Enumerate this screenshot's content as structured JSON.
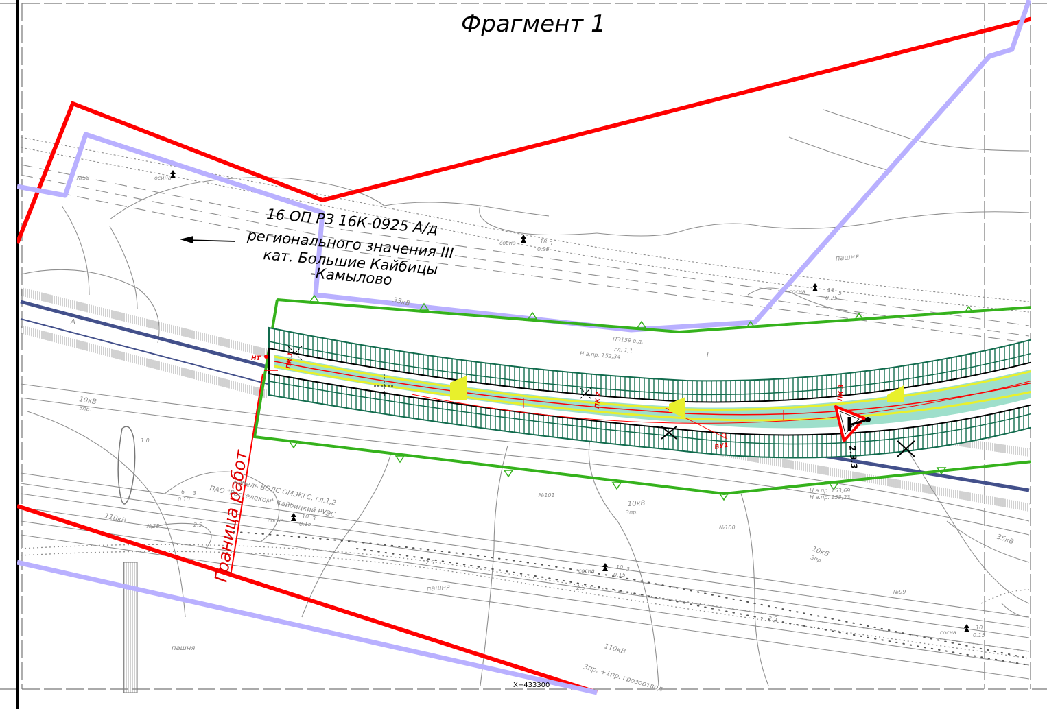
{
  "title": "Фрагмент 1",
  "road_label": {
    "line1": "16 ОП РЗ 16К-0925 А/д",
    "line2": "регионального значения III",
    "line3": "кат. Большие Кайбицы",
    "line4": "-Камылово"
  },
  "work_boundary_label": "Граница работ",
  "sign_code": "2.3.3",
  "chainage": {
    "start": "НТ",
    "pk1": "ПК 1",
    "pk2": "ПК 2",
    "pk3": "ПК 3",
    "vu": "ВУ1",
    "end": "ПК 4"
  },
  "labels": {
    "vl35_a": "35кВ",
    "vl35_b": "35кВ",
    "vl10_a": "10кВ",
    "vl10_a2": "3пр.",
    "vl10_b": "10кВ",
    "vl10_b2": "3пр.",
    "vl10_c": "10кВ",
    "vl10_c2": "3пр.",
    "vl110_a": "110кВ",
    "vl110_b": "110кВ",
    "vl110_b2": "3пр. +1пр. грозоотвод",
    "pe": "ПЭ159 в.д.",
    "pe2": "гл. 1,1",
    "heights1": "Н а.пр. 152,34",
    "cable1": "кабель ВОЛС ОМЭКГС, гл.1,2",
    "cable2": "ПАО \"Ростелеком\" Кайбицкий РУЭС",
    "field1": "пашня",
    "field2": "пашня",
    "field3": "пашня",
    "pine1": "сосна",
    "pine2": "сосна",
    "pine3": "сосна",
    "pine4": "сосна",
    "pine5": "сосна",
    "aspen": "осина",
    "n101": "№101",
    "n100": "№100",
    "n99": "№99",
    "n35": "№35",
    "n58": "№58",
    "heights2": "Н а.пр. 153,69",
    "heights3": "Н а.пр. 153,23",
    "coord": "X=433300",
    "v25a": "2.5",
    "v25b": "2.5",
    "v25c": "2.5",
    "v25d": "2.5",
    "v10": "1.0",
    "dim_a": "18",
    "dim_a2": "0.25",
    "dim_a3": "5",
    "dim_b": "16",
    "dim_b2": "0.25",
    "dim_b3": "5",
    "dim_c": "10",
    "dim_c2": "0.15",
    "dim_c3": "3",
    "dim_d": "6",
    "dim_d2": "0.10",
    "dim_d3": "3",
    "dim_e": "10",
    "dim_e2": "0.15",
    "dim_e3": "3",
    "dim_f": "10",
    "dim_f2": "0.15",
    "letter_a": "А",
    "letter_g": "Г"
  },
  "colors": {
    "allotment_boundary": "#ff0000",
    "zone_boundary": "#b9b0ff",
    "work_zone": "#35b21c",
    "road_hatch": "#116b4d",
    "road_axis": "#ff0000",
    "lane_marking": "#e8f02c",
    "lane_fill": "#4ec4a0",
    "old_road": "#43508b",
    "background_lines": "#8f8f8f"
  }
}
